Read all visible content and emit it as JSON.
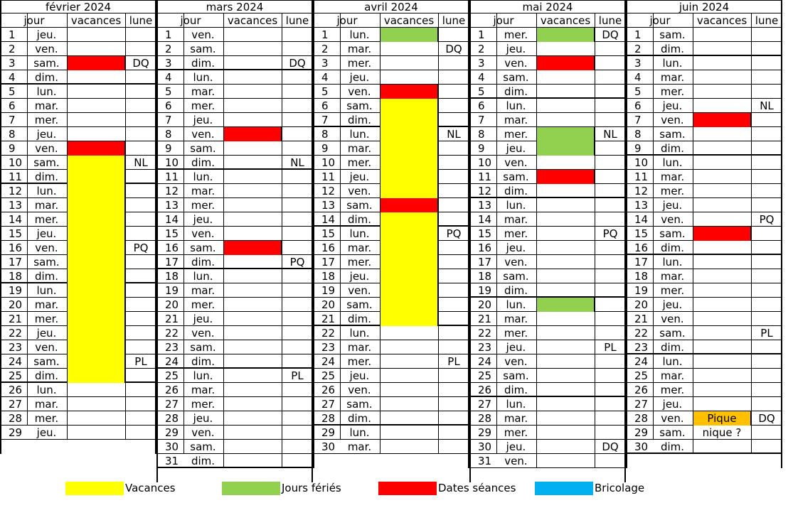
{
  "headers": {
    "jour": "jour",
    "vacances": "vacances",
    "lune": "lune"
  },
  "colors": {
    "vacances": "#ffff00",
    "feries": "#92d050",
    "seances": "#ff0000",
    "bricolage": "#00b0f0",
    "note": "#ffc000"
  },
  "legend": [
    {
      "label": "Vacances",
      "color_key": "vacances"
    },
    {
      "label": "Jours fériés",
      "color_key": "feries"
    },
    {
      "label": "Dates séances",
      "color_key": "seances"
    },
    {
      "label": "Bricolage",
      "color_key": "bricolage"
    }
  ],
  "months": [
    {
      "title": "février 2024",
      "rows": [
        {
          "n": "1",
          "d": "jeu."
        },
        {
          "n": "2",
          "d": "ven."
        },
        {
          "n": "3",
          "d": "sam.",
          "c": "seances",
          "moon": "DQ"
        },
        {
          "n": "4",
          "d": "dim."
        },
        {
          "n": "5",
          "d": "lun."
        },
        {
          "n": "6",
          "d": "mar."
        },
        {
          "n": "7",
          "d": "mer."
        },
        {
          "n": "8",
          "d": "jeu."
        },
        {
          "n": "9",
          "d": "ven.",
          "c": "seances"
        },
        {
          "n": "10",
          "d": "sam.",
          "c": "vacances",
          "moon": "NL"
        },
        {
          "n": "11",
          "d": "dim.",
          "c": "vacances"
        },
        {
          "n": "12",
          "d": "lun.",
          "c": "vacances"
        },
        {
          "n": "13",
          "d": "mar.",
          "c": "vacances"
        },
        {
          "n": "14",
          "d": "mer.",
          "c": "vacances"
        },
        {
          "n": "15",
          "d": "jeu.",
          "c": "vacances"
        },
        {
          "n": "16",
          "d": "ven.",
          "c": "vacances",
          "moon": "PQ"
        },
        {
          "n": "17",
          "d": "sam.",
          "c": "vacances"
        },
        {
          "n": "18",
          "d": "dim.",
          "c": "vacances"
        },
        {
          "n": "19",
          "d": "lun.",
          "c": "vacances"
        },
        {
          "n": "20",
          "d": "mar.",
          "c": "vacances"
        },
        {
          "n": "21",
          "d": "mer.",
          "c": "vacances"
        },
        {
          "n": "22",
          "d": "jeu.",
          "c": "vacances"
        },
        {
          "n": "23",
          "d": "ven.",
          "c": "vacances"
        },
        {
          "n": "24",
          "d": "sam.",
          "c": "vacances",
          "moon": "PL"
        },
        {
          "n": "25",
          "d": "dim.",
          "c": "vacances"
        },
        {
          "n": "26",
          "d": "lun."
        },
        {
          "n": "27",
          "d": "mar."
        },
        {
          "n": "28",
          "d": "mer."
        },
        {
          "n": "29",
          "d": "jeu."
        }
      ]
    },
    {
      "title": "mars 2024",
      "rows": [
        {
          "n": "1",
          "d": "ven."
        },
        {
          "n": "2",
          "d": "sam."
        },
        {
          "n": "3",
          "d": "dim.",
          "moon": "DQ"
        },
        {
          "n": "4",
          "d": "lun."
        },
        {
          "n": "5",
          "d": "mar."
        },
        {
          "n": "6",
          "d": "mer."
        },
        {
          "n": "7",
          "d": "jeu."
        },
        {
          "n": "8",
          "d": "ven.",
          "c": "seances"
        },
        {
          "n": "9",
          "d": "sam."
        },
        {
          "n": "10",
          "d": "dim.",
          "moon": "NL"
        },
        {
          "n": "11",
          "d": "lun."
        },
        {
          "n": "12",
          "d": "mar."
        },
        {
          "n": "13",
          "d": "mer."
        },
        {
          "n": "14",
          "d": "jeu."
        },
        {
          "n": "15",
          "d": "ven."
        },
        {
          "n": "16",
          "d": "sam.",
          "c": "seances"
        },
        {
          "n": "17",
          "d": "dim.",
          "moon": "PQ"
        },
        {
          "n": "18",
          "d": "lun."
        },
        {
          "n": "19",
          "d": "mar."
        },
        {
          "n": "20",
          "d": "mer."
        },
        {
          "n": "21",
          "d": "jeu."
        },
        {
          "n": "22",
          "d": "ven."
        },
        {
          "n": "23",
          "d": "sam."
        },
        {
          "n": "24",
          "d": "dim."
        },
        {
          "n": "25",
          "d": "lun.",
          "moon": "PL"
        },
        {
          "n": "26",
          "d": "mar."
        },
        {
          "n": "27",
          "d": "mer."
        },
        {
          "n": "28",
          "d": "jeu."
        },
        {
          "n": "29",
          "d": "ven."
        },
        {
          "n": "30",
          "d": "sam."
        },
        {
          "n": "31",
          "d": "dim."
        }
      ]
    },
    {
      "title": "avril 2024",
      "rows": [
        {
          "n": "1",
          "d": "lun.",
          "c": "feries"
        },
        {
          "n": "2",
          "d": "mar.",
          "moon": "DQ"
        },
        {
          "n": "3",
          "d": "mer."
        },
        {
          "n": "4",
          "d": "jeu."
        },
        {
          "n": "5",
          "d": "ven.",
          "c": "seances"
        },
        {
          "n": "6",
          "d": "sam.",
          "c": "vacances"
        },
        {
          "n": "7",
          "d": "dim.",
          "c": "vacances"
        },
        {
          "n": "8",
          "d": "lun.",
          "c": "vacances",
          "moon": "NL"
        },
        {
          "n": "9",
          "d": "mar.",
          "c": "vacances"
        },
        {
          "n": "10",
          "d": "mer.",
          "c": "vacances"
        },
        {
          "n": "11",
          "d": "jeu.",
          "c": "vacances"
        },
        {
          "n": "12",
          "d": "ven.",
          "c": "vacances"
        },
        {
          "n": "13",
          "d": "sam.",
          "c": "seances"
        },
        {
          "n": "14",
          "d": "dim.",
          "c": "vacances"
        },
        {
          "n": "15",
          "d": "lun.",
          "c": "vacances",
          "moon": "PQ"
        },
        {
          "n": "16",
          "d": "mar.",
          "c": "vacances"
        },
        {
          "n": "17",
          "d": "mer.",
          "c": "vacances"
        },
        {
          "n": "18",
          "d": "jeu.",
          "c": "vacances"
        },
        {
          "n": "19",
          "d": "ven.",
          "c": "vacances"
        },
        {
          "n": "20",
          "d": "sam.",
          "c": "vacances"
        },
        {
          "n": "21",
          "d": "dim.",
          "c": "vacances"
        },
        {
          "n": "22",
          "d": "lun."
        },
        {
          "n": "23",
          "d": "mar."
        },
        {
          "n": "24",
          "d": "mer.",
          "moon": "PL"
        },
        {
          "n": "25",
          "d": "jeu."
        },
        {
          "n": "26",
          "d": "ven."
        },
        {
          "n": "27",
          "d": "sam."
        },
        {
          "n": "28",
          "d": "dim."
        },
        {
          "n": "29",
          "d": "lun."
        },
        {
          "n": "30",
          "d": "mar."
        }
      ]
    },
    {
      "title": "mai 2024",
      "rows": [
        {
          "n": "1",
          "d": "mer.",
          "c": "feries",
          "moon": "DQ"
        },
        {
          "n": "2",
          "d": "jeu."
        },
        {
          "n": "3",
          "d": "ven.",
          "c": "seances"
        },
        {
          "n": "4",
          "d": "sam."
        },
        {
          "n": "5",
          "d": "dim."
        },
        {
          "n": "6",
          "d": "lun."
        },
        {
          "n": "7",
          "d": "mar."
        },
        {
          "n": "8",
          "d": "mer.",
          "c": "feries",
          "moon": "NL"
        },
        {
          "n": "9",
          "d": "jeu.",
          "c": "feries"
        },
        {
          "n": "10",
          "d": "ven."
        },
        {
          "n": "11",
          "d": "sam.",
          "c": "seances"
        },
        {
          "n": "12",
          "d": "dim."
        },
        {
          "n": "13",
          "d": "lun."
        },
        {
          "n": "14",
          "d": "mar."
        },
        {
          "n": "15",
          "d": "mer.",
          "moon": "PQ"
        },
        {
          "n": "16",
          "d": "jeu."
        },
        {
          "n": "17",
          "d": "ven."
        },
        {
          "n": "18",
          "d": "sam."
        },
        {
          "n": "19",
          "d": "dim."
        },
        {
          "n": "20",
          "d": "lun.",
          "c": "feries"
        },
        {
          "n": "21",
          "d": "mar."
        },
        {
          "n": "22",
          "d": "mer."
        },
        {
          "n": "23",
          "d": "jeu.",
          "moon": "PL"
        },
        {
          "n": "24",
          "d": "ven."
        },
        {
          "n": "25",
          "d": "sam."
        },
        {
          "n": "26",
          "d": "dim."
        },
        {
          "n": "27",
          "d": "lun."
        },
        {
          "n": "28",
          "d": "mar."
        },
        {
          "n": "29",
          "d": "mer."
        },
        {
          "n": "30",
          "d": "jeu.",
          "moon": "DQ"
        },
        {
          "n": "31",
          "d": "ven."
        }
      ]
    },
    {
      "title": "juin 2024",
      "rows": [
        {
          "n": "1",
          "d": "sam."
        },
        {
          "n": "2",
          "d": "dim."
        },
        {
          "n": "3",
          "d": "lun."
        },
        {
          "n": "4",
          "d": "mar."
        },
        {
          "n": "5",
          "d": "mer."
        },
        {
          "n": "6",
          "d": "jeu.",
          "moon": "NL"
        },
        {
          "n": "7",
          "d": "ven.",
          "c": "seances"
        },
        {
          "n": "8",
          "d": "sam."
        },
        {
          "n": "9",
          "d": "dim."
        },
        {
          "n": "10",
          "d": "lun."
        },
        {
          "n": "11",
          "d": "mar."
        },
        {
          "n": "12",
          "d": "mer."
        },
        {
          "n": "13",
          "d": "jeu."
        },
        {
          "n": "14",
          "d": "ven.",
          "moon": "PQ"
        },
        {
          "n": "15",
          "d": "sam.",
          "c": "seances"
        },
        {
          "n": "16",
          "d": "dim."
        },
        {
          "n": "17",
          "d": "lun."
        },
        {
          "n": "18",
          "d": "mar."
        },
        {
          "n": "19",
          "d": "mer."
        },
        {
          "n": "20",
          "d": "jeu."
        },
        {
          "n": "21",
          "d": "ven."
        },
        {
          "n": "22",
          "d": "sam.",
          "moon": "PL"
        },
        {
          "n": "23",
          "d": "dim."
        },
        {
          "n": "24",
          "d": "lun."
        },
        {
          "n": "25",
          "d": "mar."
        },
        {
          "n": "26",
          "d": "mer."
        },
        {
          "n": "27",
          "d": "jeu."
        },
        {
          "n": "28",
          "d": "ven.",
          "c": "note",
          "note": "Pique nique ?",
          "moon": "DQ"
        },
        {
          "n": "29",
          "d": "sam."
        },
        {
          "n": "30",
          "d": "dim."
        }
      ]
    }
  ]
}
